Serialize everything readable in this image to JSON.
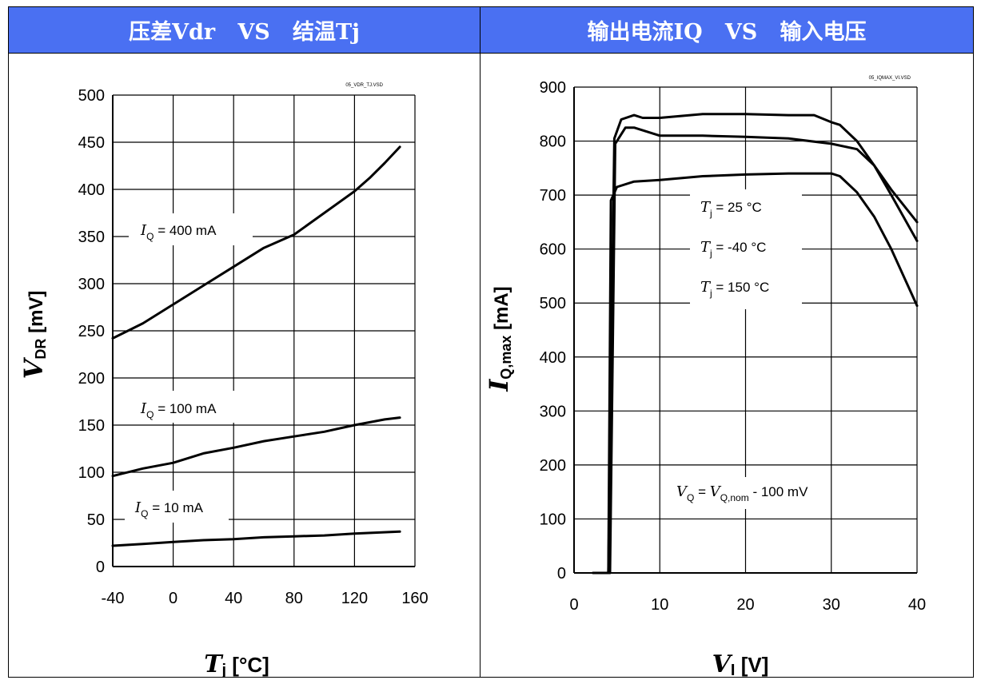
{
  "headers": {
    "left": "压差Vdr   VS   结温Tj",
    "right": "输出电流IQ   VS   输入电压"
  },
  "chart_data": [
    {
      "type": "line",
      "file_tag": "05_VDR_TJ.VSD",
      "xlabel_main": "T",
      "xlabel_sub": "j",
      "xlabel_unit": " [°C]",
      "ylabel_main": "V",
      "ylabel_sub": "DR",
      "ylabel_unit": " [mV]",
      "xlim": [
        -40,
        160
      ],
      "ylim": [
        0,
        500
      ],
      "xticks": [
        -40,
        0,
        40,
        80,
        120,
        160
      ],
      "yticks": [
        0,
        50,
        100,
        150,
        200,
        250,
        300,
        350,
        400,
        450,
        500
      ],
      "annotations": [
        {
          "main": "I",
          "sub": "Q",
          "text": " = 400 mA"
        },
        {
          "main": "I",
          "sub": "Q",
          "text": " = 100 mA"
        },
        {
          "main": "I",
          "sub": "Q",
          "text": " = 10 mA"
        }
      ],
      "series": [
        {
          "x": [
            -40,
            -20,
            0,
            20,
            40,
            60,
            80,
            100,
            120,
            130,
            140,
            150
          ],
          "y": [
            242,
            258,
            278,
            298,
            318,
            338,
            352,
            375,
            398,
            412,
            428,
            445
          ]
        },
        {
          "x": [
            -40,
            -20,
            0,
            20,
            40,
            60,
            80,
            100,
            120,
            140,
            150
          ],
          "y": [
            96,
            104,
            110,
            120,
            126,
            133,
            138,
            143,
            150,
            156,
            158
          ]
        },
        {
          "x": [
            -40,
            -20,
            0,
            20,
            40,
            60,
            80,
            100,
            120,
            150
          ],
          "y": [
            22,
            24,
            26,
            28,
            29,
            31,
            32,
            33,
            35,
            37
          ]
        }
      ]
    },
    {
      "type": "line",
      "file_tag": "05_IQMAX_VI.VSD",
      "xlabel_main": "V",
      "xlabel_sub": "I",
      "xlabel_unit": " [V]",
      "ylabel_main": "I",
      "ylabel_sub": "Q,max",
      "ylabel_unit": " [mA]",
      "xlim": [
        0,
        40
      ],
      "ylim": [
        0,
        900
      ],
      "xticks": [
        0,
        10,
        20,
        30,
        40
      ],
      "yticks": [
        0,
        100,
        200,
        300,
        400,
        500,
        600,
        700,
        800,
        900
      ],
      "annotations": [
        {
          "main": "T",
          "sub": "j",
          "text": " = 25 °C"
        },
        {
          "main": "T",
          "sub": "j",
          "text": " = -40 °C"
        },
        {
          "main": "T",
          "sub": "j",
          "text": " = 150 °C"
        },
        {
          "main": "V",
          "sub": "Q",
          "text": " = ",
          "main2": "V",
          "sub2": "Q,nom",
          "text2": " - 100 mV"
        }
      ],
      "series": [
        {
          "x": [
            2.2,
            3.0,
            3.4,
            4.0,
            4.7,
            5.5,
            7,
            8,
            10,
            15,
            20,
            25,
            28,
            30,
            31,
            33,
            35,
            37,
            40
          ],
          "y": [
            0,
            0,
            0,
            0,
            805,
            840,
            848,
            843,
            843,
            850,
            850,
            848,
            848,
            835,
            830,
            800,
            755,
            710,
            650
          ]
        },
        {
          "x": [
            2.8,
            3.3,
            3.8,
            4.2,
            4.8,
            6,
            7,
            10,
            15,
            20,
            25,
            30,
            33,
            35,
            37,
            40
          ],
          "y": [
            0,
            0,
            0,
            0,
            795,
            825,
            825,
            810,
            810,
            808,
            805,
            795,
            785,
            755,
            700,
            615
          ]
        },
        {
          "x": [
            3.2,
            3.6,
            4.0,
            4.3,
            5,
            7,
            10,
            15,
            20,
            25,
            30,
            31,
            33,
            35,
            37,
            40
          ],
          "y": [
            0,
            0,
            0,
            690,
            715,
            725,
            728,
            735,
            738,
            740,
            740,
            735,
            705,
            660,
            600,
            495
          ]
        }
      ]
    }
  ]
}
